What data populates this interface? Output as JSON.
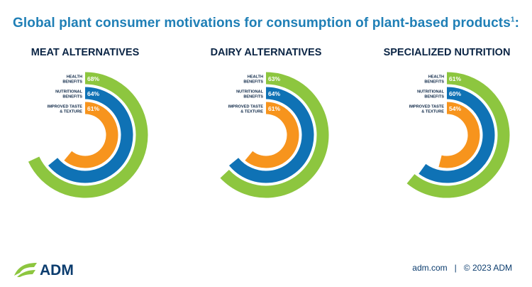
{
  "title": {
    "text": "Global plant consumer motivations for consumption of plant-based products",
    "footnote_mark": "1",
    "suffix": ":"
  },
  "colors": {
    "health": "#8dc63f",
    "nutrition": "#0f72b5",
    "taste": "#f7941d",
    "title": "#1f7fb6",
    "dark": "#0b2545"
  },
  "chart_data": [
    {
      "type": "radial-bar",
      "title": "MEAT ALTERNATIVES",
      "series": [
        {
          "name": "HEALTH BENEFITS",
          "label_lines": [
            "HEALTH",
            "BENEFITS"
          ],
          "value": 68,
          "value_label": "68%"
        },
        {
          "name": "NUTRITIONAL BENEFITS",
          "label_lines": [
            "NUTRITIONAL",
            "BENEFITS"
          ],
          "value": 64,
          "value_label": "64%"
        },
        {
          "name": "IMPROVED TASTE & TEXTURE",
          "label_lines": [
            "IMPROVED TASTE",
            "& TEXTURE"
          ],
          "value": 61,
          "value_label": "61%"
        }
      ]
    },
    {
      "type": "radial-bar",
      "title": "DAIRY ALTERNATIVES",
      "series": [
        {
          "name": "HEALTH BENEFITS",
          "label_lines": [
            "HEALTH",
            "BENEFITS"
          ],
          "value": 63,
          "value_label": "63%"
        },
        {
          "name": "NUTRITIONAL BENEFITS",
          "label_lines": [
            "NUTRITIONAL",
            "BENEFITS"
          ],
          "value": 64,
          "value_label": "64%"
        },
        {
          "name": "IMPROVED TASTE & TEXTURE",
          "label_lines": [
            "IMPROVED TASTE",
            "& TEXTURE"
          ],
          "value": 61,
          "value_label": "61%"
        }
      ]
    },
    {
      "type": "radial-bar",
      "title": "SPECIALIZED NUTRITION",
      "series": [
        {
          "name": "HEALTH BENEFITS",
          "label_lines": [
            "HEALTH",
            "BENEFITS"
          ],
          "value": 61,
          "value_label": "61%"
        },
        {
          "name": "NUTRITIONAL BENEFITS",
          "label_lines": [
            "NUTRITIONAL",
            "BENEFITS"
          ],
          "value": 60,
          "value_label": "60%"
        },
        {
          "name": "IMPROVED TASTE & TEXTURE",
          "label_lines": [
            "IMPROVED TASTE",
            "& TEXTURE"
          ],
          "value": 54,
          "value_label": "54%"
        }
      ]
    }
  ],
  "footer": {
    "logo_text": "ADM",
    "site": "adm.com",
    "separator": "|",
    "copyright": "© 2023 ADM"
  }
}
